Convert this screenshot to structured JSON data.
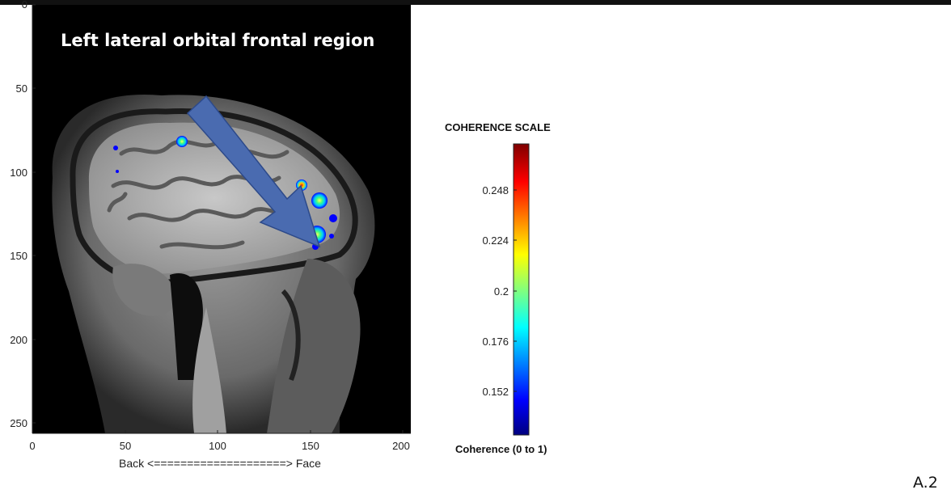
{
  "figure": {
    "overlay_title": "Left lateral orbital frontal region",
    "panel_label": "A.2",
    "x_axis": {
      "label": "Back <====================> Face",
      "ticks": [
        "0",
        "50",
        "100",
        "150",
        "200"
      ]
    },
    "y_axis": {
      "ticks": [
        "0",
        "50",
        "100",
        "150",
        "200",
        "250"
      ]
    },
    "colorbar": {
      "title": "COHERENCE SCALE",
      "bottom_label": "Coherence (0 to 1)",
      "ticks": [
        "0.248",
        "0.224",
        "0.2",
        "0.176",
        "0.152"
      ],
      "colormap": [
        "#00007f",
        "#0000ff",
        "#00ffff",
        "#ffff00",
        "#ff0000",
        "#7f0000"
      ]
    },
    "arrow_color": "#4a6bb0"
  }
}
